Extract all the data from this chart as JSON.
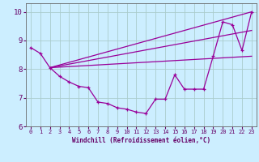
{
  "xlabel": "Windchill (Refroidissement éolien,°C)",
  "bg_color": "#cceeff",
  "line_color": "#990099",
  "grid_color": "#aacccc",
  "xlim": [
    -0.5,
    23.5
  ],
  "ylim": [
    6,
    10.3
  ],
  "yticks": [
    6,
    7,
    8,
    9,
    10
  ],
  "xticks": [
    0,
    1,
    2,
    3,
    4,
    5,
    6,
    7,
    8,
    9,
    10,
    11,
    12,
    13,
    14,
    15,
    16,
    17,
    18,
    19,
    20,
    21,
    22,
    23
  ],
  "main_x": [
    0,
    1,
    2,
    3,
    4,
    5,
    6,
    7,
    8,
    9,
    10,
    11,
    12,
    13,
    14,
    15,
    16,
    17,
    18,
    19,
    20,
    21,
    22,
    23
  ],
  "main_y": [
    8.75,
    8.55,
    8.05,
    7.75,
    7.55,
    7.4,
    7.35,
    6.85,
    6.8,
    6.65,
    6.6,
    6.5,
    6.45,
    6.95,
    6.95,
    7.8,
    7.3,
    7.3,
    7.3,
    8.45,
    9.65,
    9.55,
    8.65,
    10.0
  ],
  "line1_x": [
    2,
    23
  ],
  "line1_y": [
    8.05,
    10.0
  ],
  "line2_x": [
    2,
    23
  ],
  "line2_y": [
    8.05,
    9.35
  ],
  "line3_x": [
    2,
    23
  ],
  "line3_y": [
    8.05,
    8.45
  ],
  "xlabel_color": "#660066",
  "tick_color": "#660066",
  "spine_color": "#666666"
}
